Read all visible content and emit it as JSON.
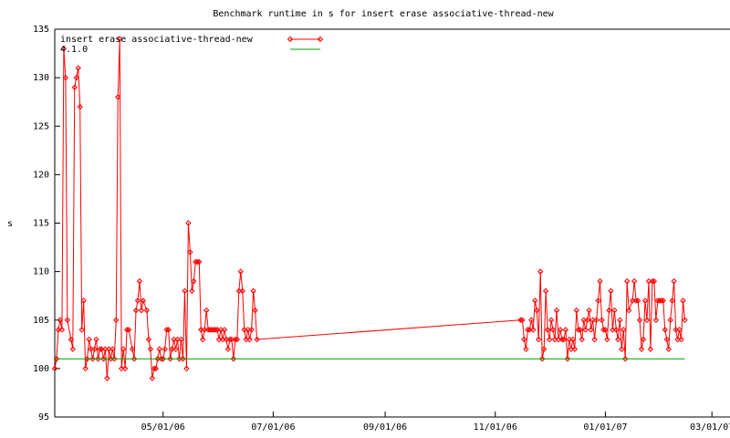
{
  "chart_data": {
    "type": "line",
    "title": "Benchmark runtime in s for insert erase associative-thread-new",
    "y_label": "s",
    "xlim": [
      "2006-03-02",
      "2007-03-10"
    ],
    "xticks": [
      {
        "value": "2006-05-01",
        "label": "05/01/06"
      },
      {
        "value": "2006-07-01",
        "label": "07/01/06"
      },
      {
        "value": "2006-09-01",
        "label": "09/01/06"
      },
      {
        "value": "2006-11-01",
        "label": "11/01/06"
      },
      {
        "value": "2007-01-01",
        "label": "01/01/07"
      },
      {
        "value": "2007-03-01",
        "label": "03/01/07"
      }
    ],
    "ylim": [
      95,
      135
    ],
    "yticks": [
      95,
      100,
      105,
      110,
      115,
      120,
      125,
      130,
      135
    ],
    "grid": false,
    "legend": "top-left",
    "series": [
      {
        "name": "insert erase associative-thread-new",
        "color": "#ff0000",
        "markers": true,
        "x": [
          "2006-03-02",
          "2006-03-03",
          "2006-03-04",
          "2006-03-05",
          "2006-03-06",
          "2006-03-07",
          "2006-03-08",
          "2006-03-09",
          "2006-03-11",
          "2006-03-12",
          "2006-03-13",
          "2006-03-14",
          "2006-03-15",
          "2006-03-16",
          "2006-03-17",
          "2006-03-18",
          "2006-03-19",
          "2006-03-20",
          "2006-03-21",
          "2006-03-22",
          "2006-03-23",
          "2006-03-24",
          "2006-03-25",
          "2006-03-26",
          "2006-03-27",
          "2006-03-28",
          "2006-03-29",
          "2006-03-30",
          "2006-03-31",
          "2006-04-01",
          "2006-04-02",
          "2006-04-03",
          "2006-04-04",
          "2006-04-05",
          "2006-04-06",
          "2006-04-07",
          "2006-04-08",
          "2006-04-09",
          "2006-04-10",
          "2006-04-11",
          "2006-04-12",
          "2006-04-14",
          "2006-04-15",
          "2006-04-16",
          "2006-04-17",
          "2006-04-18",
          "2006-04-19",
          "2006-04-20",
          "2006-04-22",
          "2006-04-23",
          "2006-04-24",
          "2006-04-25",
          "2006-04-26",
          "2006-04-27",
          "2006-04-28",
          "2006-04-29",
          "2006-04-30",
          "2006-05-01",
          "2006-05-02",
          "2006-05-03",
          "2006-05-04",
          "2006-05-05",
          "2006-05-06",
          "2006-05-07",
          "2006-05-08",
          "2006-05-09",
          "2006-05-10",
          "2006-05-11",
          "2006-05-12",
          "2006-05-13",
          "2006-05-14",
          "2006-05-15",
          "2006-05-16",
          "2006-05-17",
          "2006-05-18",
          "2006-05-19",
          "2006-05-20",
          "2006-05-21",
          "2006-05-22",
          "2006-05-23",
          "2006-05-24",
          "2006-05-25",
          "2006-05-26",
          "2006-05-27",
          "2006-05-28",
          "2006-05-29",
          "2006-05-30",
          "2006-05-31",
          "2006-06-01",
          "2006-06-02",
          "2006-06-03",
          "2006-06-04",
          "2006-06-05",
          "2006-06-06",
          "2006-06-07",
          "2006-06-08",
          "2006-06-09",
          "2006-06-10",
          "2006-06-11",
          "2006-06-12",
          "2006-06-13",
          "2006-06-14",
          "2006-06-15",
          "2006-06-16",
          "2006-06-17",
          "2006-06-18",
          "2006-06-19",
          "2006-06-20",
          "2006-06-21",
          "2006-06-22",
          "2006-11-15",
          "2006-11-16",
          "2006-11-17",
          "2006-11-18",
          "2006-11-19",
          "2006-11-20",
          "2006-11-21",
          "2006-11-22",
          "2006-11-23",
          "2006-11-24",
          "2006-11-25",
          "2006-11-26",
          "2006-11-27",
          "2006-11-28",
          "2006-11-29",
          "2006-11-30",
          "2006-12-01",
          "2006-12-02",
          "2006-12-03",
          "2006-12-04",
          "2006-12-05",
          "2006-12-06",
          "2006-12-07",
          "2006-12-08",
          "2006-12-09",
          "2006-12-10",
          "2006-12-11",
          "2006-12-12",
          "2006-12-13",
          "2006-12-14",
          "2006-12-15",
          "2006-12-16",
          "2006-12-17",
          "2006-12-18",
          "2006-12-19",
          "2006-12-20",
          "2006-12-21",
          "2006-12-22",
          "2006-12-23",
          "2006-12-24",
          "2006-12-25",
          "2006-12-26",
          "2006-12-27",
          "2006-12-28",
          "2006-12-29",
          "2006-12-30",
          "2006-12-31",
          "2007-01-01",
          "2007-01-02",
          "2007-01-03",
          "2007-01-04",
          "2007-01-05",
          "2007-01-06",
          "2007-01-07",
          "2007-01-08",
          "2007-01-09",
          "2007-01-10",
          "2007-01-11",
          "2007-01-12",
          "2007-01-13",
          "2007-01-14",
          "2007-01-16",
          "2007-01-17",
          "2007-01-18",
          "2007-01-19",
          "2007-01-20",
          "2007-01-21",
          "2007-01-22",
          "2007-01-23",
          "2007-01-24",
          "2007-01-25",
          "2007-01-26",
          "2007-01-27",
          "2007-01-28",
          "2007-01-29",
          "2007-01-30",
          "2007-01-31",
          "2007-02-01",
          "2007-02-02",
          "2007-02-03",
          "2007-02-04",
          "2007-02-05",
          "2007-02-06",
          "2007-02-07",
          "2007-02-08",
          "2007-02-09",
          "2007-02-10",
          "2007-02-11",
          "2007-02-12",
          "2007-02-13",
          "2007-02-14"
        ],
        "values": [
          100,
          101,
          104,
          105,
          104,
          133,
          130,
          105,
          103,
          102,
          129,
          130,
          131,
          127,
          104,
          107,
          100,
          101,
          103,
          102,
          101,
          102,
          103,
          101,
          102,
          102,
          101,
          102,
          99,
          102,
          101,
          102,
          101,
          105,
          128,
          134,
          100,
          102,
          100,
          104,
          104,
          102,
          101,
          106,
          107,
          109,
          106,
          107,
          106,
          103,
          102,
          99,
          100,
          100,
          101,
          102,
          101,
          101,
          102,
          104,
          104,
          101,
          102,
          103,
          102,
          103,
          101,
          103,
          101,
          108,
          100,
          115,
          112,
          108,
          109,
          111,
          111,
          111,
          104,
          103,
          104,
          106,
          104,
          104,
          104,
          104,
          104,
          104,
          103,
          104,
          103,
          104,
          103,
          102,
          103,
          103,
          101,
          103,
          103,
          108,
          110,
          108,
          104,
          103,
          104,
          103,
          104,
          108,
          106,
          103,
          105,
          105,
          103,
          102,
          104,
          104,
          105,
          104,
          107,
          106,
          103,
          110,
          101,
          102,
          108,
          104,
          103,
          105,
          104,
          103,
          106,
          103,
          104,
          103,
          103,
          104,
          101,
          103,
          102,
          103,
          102,
          106,
          104,
          104,
          103,
          105,
          104,
          105,
          106,
          104,
          105,
          103,
          105,
          107,
          109,
          105,
          104,
          104,
          103,
          106,
          108,
          104,
          106,
          104,
          103,
          105,
          102,
          104,
          101,
          109,
          106,
          107,
          109,
          107,
          107,
          105,
          102,
          103,
          107,
          105,
          109,
          102,
          109,
          109,
          105,
          107,
          107,
          107,
          107,
          104,
          103,
          102,
          105,
          107,
          109,
          104,
          103,
          104,
          103,
          107,
          105
        ]
      },
      {
        "name": "4.1.0",
        "color": "#00a000",
        "markers": false,
        "x": [
          "2006-03-02",
          "2007-02-14"
        ],
        "values": [
          101,
          101
        ]
      }
    ]
  }
}
